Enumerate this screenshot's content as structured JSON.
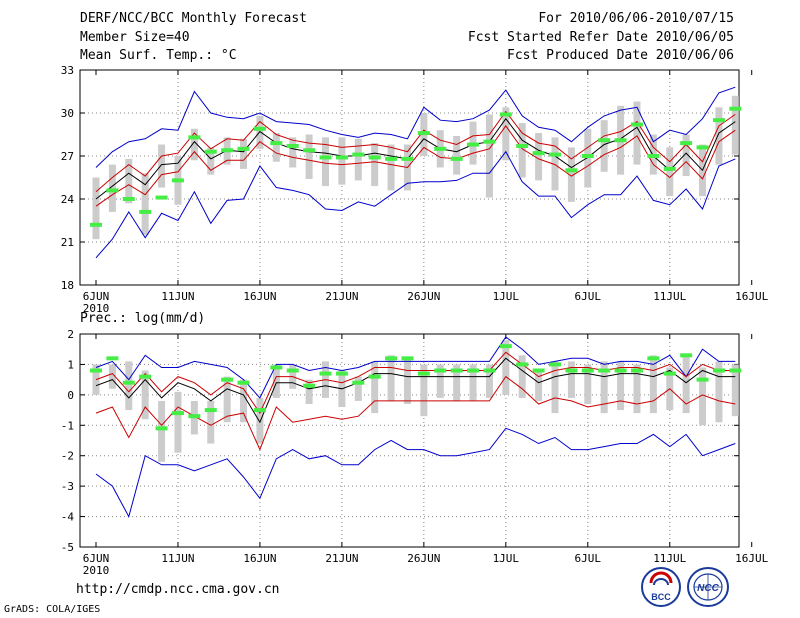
{
  "header": {
    "title": "DERF/NCC/BCC Monthly Forecast",
    "member_size": "Member Size=40",
    "variable": "Mean Surf. Temp.: °C",
    "period": "For 2010/06/06-2010/07/15",
    "fcst_started": "Fcst Started Refer Date 2010/06/05",
    "fcst_produced": "Fcst Produced Date 2010/06/06"
  },
  "footer": {
    "url": "http://cmdp.ncc.cma.gov.cn",
    "credit": "GrADS: COLA/IGES",
    "logo1_text": "BCC",
    "logo2_text": "NCC"
  },
  "colors": {
    "max_min": "#0000cc",
    "spread": "#cc0000",
    "mean": "#000000",
    "obs": "#44ee44",
    "box": "#cccccc",
    "grid": "#888888"
  },
  "chart_data": [
    {
      "type": "line",
      "title": "Mean Surf. Temp.: °C",
      "xlabel": "",
      "ylabel": "",
      "ylim": [
        18,
        33
      ],
      "yticks": [
        18,
        21,
        24,
        27,
        30,
        33
      ],
      "xtick_labels": [
        "6JUN",
        "11JUN",
        "16JUN",
        "21JUN",
        "26JUN",
        "1JUL",
        "6JUL",
        "11JUL",
        "16JUL"
      ],
      "xtick_days": [
        0,
        5,
        10,
        15,
        20,
        25,
        30,
        35,
        40
      ],
      "year_label": "2010",
      "grid": true,
      "x_days": [
        0,
        1,
        2,
        3,
        4,
        5,
        6,
        7,
        8,
        9,
        10,
        11,
        12,
        13,
        14,
        15,
        16,
        17,
        18,
        19,
        20,
        21,
        22,
        23,
        24,
        25,
        26,
        27,
        28,
        29,
        30,
        31,
        32,
        33,
        34,
        35,
        36,
        37,
        38,
        39
      ],
      "series": [
        {
          "name": "max",
          "values": [
            26.2,
            27.3,
            28.0,
            28.2,
            28.9,
            28.8,
            31.5,
            30.0,
            29.7,
            29.6,
            30.0,
            29.4,
            29.3,
            29.2,
            28.8,
            28.5,
            28.3,
            28.6,
            28.5,
            28.2,
            30.4,
            29.5,
            29.4,
            29.6,
            30.2,
            31.6,
            29.8,
            29.0,
            28.8,
            28.0,
            29.0,
            29.8,
            30.2,
            30.4,
            28.0,
            28.8,
            28.5,
            29.6,
            31.4,
            31.8
          ]
        },
        {
          "name": "spread_upper",
          "values": [
            24.5,
            25.5,
            26.4,
            25.6,
            27.0,
            27.2,
            28.6,
            27.5,
            28.2,
            28.1,
            29.4,
            28.5,
            28.1,
            27.9,
            27.8,
            27.6,
            27.7,
            27.8,
            27.6,
            27.3,
            28.8,
            28.1,
            27.8,
            28.4,
            28.5,
            30.1,
            28.6,
            27.9,
            27.7,
            26.8,
            27.6,
            28.4,
            28.7,
            29.4,
            27.6,
            26.6,
            27.8,
            26.6,
            29.1,
            29.9
          ]
        },
        {
          "name": "mean",
          "values": [
            24.0,
            24.9,
            25.8,
            25.0,
            26.4,
            26.5,
            28.0,
            26.8,
            27.4,
            27.3,
            28.7,
            27.9,
            27.5,
            27.3,
            27.2,
            27.0,
            27.0,
            27.2,
            27.0,
            26.8,
            28.2,
            27.5,
            27.3,
            27.8,
            28.0,
            29.6,
            28.1,
            27.4,
            27.0,
            26.2,
            26.9,
            27.8,
            28.2,
            29.0,
            27.0,
            26.0,
            27.2,
            26.0,
            28.6,
            29.4
          ]
        },
        {
          "name": "spread_lower",
          "values": [
            23.5,
            24.3,
            25.0,
            24.3,
            25.7,
            25.9,
            27.3,
            26.0,
            26.7,
            26.7,
            28.0,
            27.2,
            26.9,
            26.7,
            26.5,
            26.4,
            26.5,
            26.6,
            26.4,
            26.2,
            27.6,
            26.9,
            26.8,
            27.2,
            27.5,
            29.1,
            27.5,
            26.8,
            26.4,
            25.6,
            26.3,
            27.1,
            27.6,
            28.4,
            26.4,
            25.5,
            26.6,
            25.4,
            28.0,
            28.8
          ]
        },
        {
          "name": "min",
          "values": [
            19.9,
            21.2,
            23.1,
            21.3,
            23.0,
            22.5,
            24.5,
            22.3,
            23.9,
            24.0,
            26.3,
            24.8,
            24.6,
            24.3,
            23.3,
            23.2,
            23.8,
            23.5,
            24.3,
            25.1,
            25.2,
            25.2,
            25.3,
            25.8,
            25.8,
            27.3,
            25.2,
            24.2,
            24.2,
            22.7,
            23.6,
            24.3,
            24.3,
            25.6,
            23.9,
            23.6,
            24.7,
            23.3,
            26.3,
            26.8
          ]
        },
        {
          "name": "observation",
          "values": [
            22.2,
            24.6,
            24.0,
            23.1,
            24.1,
            25.3,
            28.3,
            27.3,
            27.4,
            27.5,
            28.9,
            27.9,
            27.7,
            27.4,
            26.9,
            26.9,
            27.1,
            26.9,
            26.8,
            26.8,
            28.6,
            27.5,
            26.8,
            27.8,
            28.0,
            29.9,
            27.7,
            27.2,
            27.1,
            26.0,
            27.0,
            28.1,
            28.1,
            29.2,
            27.0,
            26.1,
            27.9,
            27.6,
            29.5,
            30.3
          ]
        }
      ],
      "boxes": [
        [
          21.2,
          25.5
        ],
        [
          23.1,
          26.4
        ],
        [
          23.7,
          26.8
        ],
        [
          21.5,
          25.8
        ],
        [
          24.8,
          27.8
        ],
        [
          23.6,
          27.0
        ],
        [
          26.7,
          28.9
        ],
        [
          25.7,
          27.6
        ],
        [
          26.4,
          28.3
        ],
        [
          26.1,
          28.2
        ],
        [
          27.5,
          29.8
        ],
        [
          26.6,
          28.6
        ],
        [
          26.2,
          28.3
        ],
        [
          25.4,
          28.5
        ],
        [
          24.9,
          28.3
        ],
        [
          25.0,
          28.3
        ],
        [
          25.3,
          28.2
        ],
        [
          24.9,
          27.9
        ],
        [
          24.6,
          27.8
        ],
        [
          24.6,
          27.8
        ],
        [
          27.0,
          30.0
        ],
        [
          26.2,
          28.8
        ],
        [
          25.7,
          28.4
        ],
        [
          26.4,
          29.4
        ],
        [
          24.1,
          29.9
        ],
        [
          26.7,
          30.4
        ],
        [
          25.5,
          29.3
        ],
        [
          25.3,
          28.6
        ],
        [
          24.6,
          28.3
        ],
        [
          23.8,
          27.6
        ],
        [
          24.8,
          28.9
        ],
        [
          25.9,
          29.5
        ],
        [
          25.7,
          30.5
        ],
        [
          26.4,
          30.8
        ],
        [
          25.7,
          28.5
        ],
        [
          24.2,
          27.6
        ],
        [
          25.6,
          28.5
        ],
        [
          24.2,
          27.8
        ],
        [
          26.4,
          30.4
        ],
        [
          27.1,
          31.2
        ]
      ]
    },
    {
      "type": "line",
      "title": "Prec.: log(mm/d)",
      "xlabel": "",
      "ylabel": "",
      "ylim": [
        -5,
        2
      ],
      "yticks": [
        -5,
        -4,
        -3,
        -2,
        -1,
        0,
        1,
        2
      ],
      "xtick_labels": [
        "6JUN",
        "11JUN",
        "16JUN",
        "21JUN",
        "26JUN",
        "1JUL",
        "6JUL",
        "11JUL",
        "16JUL"
      ],
      "xtick_days": [
        0,
        5,
        10,
        15,
        20,
        25,
        30,
        35,
        40
      ],
      "year_label": "2010",
      "grid": true,
      "x_days": [
        0,
        1,
        2,
        3,
        4,
        5,
        6,
        7,
        8,
        9,
        10,
        11,
        12,
        13,
        14,
        15,
        16,
        17,
        18,
        19,
        20,
        21,
        22,
        23,
        24,
        25,
        26,
        27,
        28,
        29,
        30,
        31,
        32,
        33,
        34,
        35,
        36,
        37,
        38,
        39
      ],
      "series": [
        {
          "name": "max",
          "values": [
            0.9,
            1.1,
            0.5,
            1.3,
            0.9,
            0.9,
            1.1,
            1.0,
            0.9,
            0.5,
            -0.1,
            1.0,
            1.0,
            0.8,
            0.9,
            0.8,
            0.9,
            1.1,
            1.1,
            1.1,
            1.1,
            1.1,
            1.1,
            1.1,
            1.1,
            1.9,
            1.5,
            1.0,
            1.1,
            1.2,
            1.2,
            1.0,
            1.1,
            1.1,
            1.0,
            1.3,
            0.6,
            1.5,
            1.1,
            1.1
          ]
        },
        {
          "name": "spread_upper",
          "values": [
            0.5,
            0.7,
            0.1,
            0.7,
            0.1,
            0.6,
            0.4,
            0.0,
            0.4,
            0.2,
            -0.6,
            0.6,
            0.6,
            0.4,
            0.5,
            0.4,
            0.6,
            0.9,
            0.9,
            0.8,
            0.8,
            0.8,
            0.8,
            0.8,
            0.8,
            1.4,
            1.0,
            0.6,
            0.8,
            0.9,
            0.9,
            0.8,
            0.9,
            0.9,
            0.8,
            1.0,
            0.6,
            1.0,
            0.8,
            0.8
          ]
        },
        {
          "name": "mean",
          "values": [
            0.3,
            0.5,
            -0.1,
            0.5,
            -0.1,
            0.4,
            0.2,
            -0.2,
            0.2,
            0.0,
            -0.9,
            0.4,
            0.4,
            0.2,
            0.3,
            0.2,
            0.4,
            0.7,
            0.7,
            0.6,
            0.6,
            0.6,
            0.6,
            0.6,
            0.6,
            1.2,
            0.8,
            0.4,
            0.6,
            0.7,
            0.7,
            0.6,
            0.7,
            0.7,
            0.6,
            0.8,
            0.4,
            0.8,
            0.6,
            0.6
          ]
        },
        {
          "name": "spread_lower",
          "values": [
            -0.6,
            -0.4,
            -1.4,
            -0.4,
            -1.0,
            -0.4,
            -0.7,
            -1.0,
            -0.7,
            -0.6,
            -1.8,
            -0.4,
            -0.9,
            -0.8,
            -0.7,
            -0.8,
            -0.7,
            -0.2,
            -0.2,
            -0.2,
            -0.2,
            -0.2,
            -0.2,
            -0.2,
            -0.2,
            0.6,
            0.2,
            -0.3,
            -0.1,
            -0.2,
            -0.4,
            -0.3,
            -0.2,
            -0.3,
            -0.2,
            0.2,
            -0.3,
            0.0,
            -0.2,
            -0.3
          ]
        },
        {
          "name": "min",
          "values": [
            -2.6,
            -3.0,
            -4.0,
            -2.0,
            -2.3,
            -2.3,
            -2.5,
            -2.3,
            -2.1,
            -2.7,
            -3.4,
            -2.1,
            -1.8,
            -2.1,
            -2.0,
            -2.3,
            -2.3,
            -1.8,
            -1.5,
            -1.8,
            -1.8,
            -2.0,
            -2.0,
            -1.9,
            -1.8,
            -1.1,
            -1.3,
            -1.6,
            -1.4,
            -1.8,
            -1.8,
            -1.7,
            -1.6,
            -1.6,
            -1.3,
            -1.7,
            -1.3,
            -2.0,
            -1.8,
            -1.6
          ]
        },
        {
          "name": "observation",
          "values": [
            0.8,
            1.2,
            0.4,
            0.6,
            -1.1,
            -0.6,
            -0.7,
            -0.5,
            0.5,
            0.4,
            -0.5,
            0.9,
            0.8,
            0.3,
            0.7,
            0.7,
            0.4,
            0.6,
            1.2,
            1.2,
            0.7,
            0.8,
            0.8,
            0.8,
            0.8,
            1.6,
            1.0,
            0.8,
            1.0,
            0.8,
            0.8,
            0.8,
            0.8,
            0.8,
            1.2,
            0.7,
            1.3,
            0.5,
            0.8,
            0.8
          ]
        }
      ],
      "boxes": [
        [
          0.0,
          1.0
        ],
        [
          0.2,
          1.0
        ],
        [
          -0.5,
          1.1
        ],
        [
          -0.8,
          0.8
        ],
        [
          -2.2,
          -0.2
        ],
        [
          -1.9,
          0.1
        ],
        [
          -1.3,
          -0.2
        ],
        [
          -1.6,
          -0.2
        ],
        [
          -0.9,
          0.6
        ],
        [
          -0.9,
          0.5
        ],
        [
          -1.6,
          -0.1
        ],
        [
          -0.1,
          1.0
        ],
        [
          0.2,
          1.0
        ],
        [
          -0.3,
          0.5
        ],
        [
          -0.1,
          1.1
        ],
        [
          -0.4,
          0.8
        ],
        [
          -0.2,
          0.6
        ],
        [
          -0.6,
          1.1
        ],
        [
          -0.2,
          1.3
        ],
        [
          -0.3,
          1.2
        ],
        [
          -0.7,
          1.0
        ],
        [
          -0.1,
          1.0
        ],
        [
          -0.2,
          1.0
        ],
        [
          -0.2,
          1.0
        ],
        [
          -0.1,
          1.0
        ],
        [
          0.0,
          1.8
        ],
        [
          -0.1,
          1.3
        ],
        [
          -0.2,
          0.8
        ],
        [
          -0.6,
          1.1
        ],
        [
          -0.1,
          1.1
        ],
        [
          -0.3,
          1.0
        ],
        [
          -0.6,
          1.1
        ],
        [
          -0.5,
          1.1
        ],
        [
          -0.6,
          1.0
        ],
        [
          -0.6,
          1.3
        ],
        [
          -0.5,
          0.9
        ],
        [
          -0.6,
          1.3
        ],
        [
          -1.0,
          0.9
        ],
        [
          -0.9,
          1.1
        ],
        [
          -0.7,
          1.0
        ]
      ]
    }
  ]
}
